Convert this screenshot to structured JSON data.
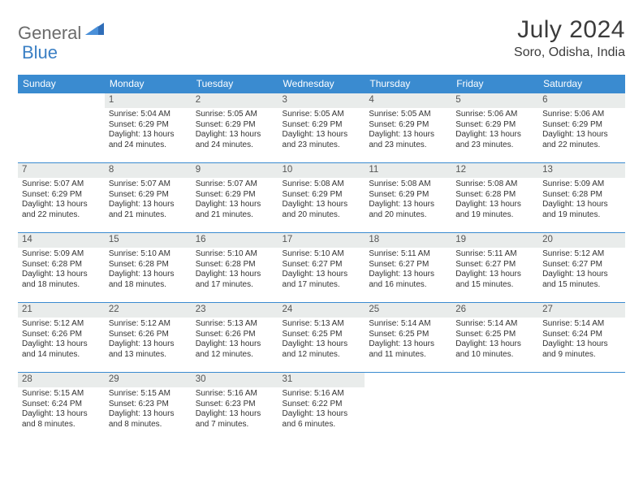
{
  "brand": {
    "part1": "General",
    "part2": "Blue"
  },
  "title": "July 2024",
  "location": "Soro, Odisha, India",
  "colors": {
    "header_bg": "#3a8bd0",
    "header_text": "#ffffff",
    "daynum_bg": "#e9eceb",
    "rule": "#3a8bd0",
    "brand_gray": "#6b6b6b",
    "brand_blue": "#3a7fc4"
  },
  "dow": [
    "Sunday",
    "Monday",
    "Tuesday",
    "Wednesday",
    "Thursday",
    "Friday",
    "Saturday"
  ],
  "weeks": [
    [
      {
        "n": "",
        "lines": []
      },
      {
        "n": "1",
        "lines": [
          "Sunrise: 5:04 AM",
          "Sunset: 6:29 PM",
          "Daylight: 13 hours",
          "and 24 minutes."
        ]
      },
      {
        "n": "2",
        "lines": [
          "Sunrise: 5:05 AM",
          "Sunset: 6:29 PM",
          "Daylight: 13 hours",
          "and 24 minutes."
        ]
      },
      {
        "n": "3",
        "lines": [
          "Sunrise: 5:05 AM",
          "Sunset: 6:29 PM",
          "Daylight: 13 hours",
          "and 23 minutes."
        ]
      },
      {
        "n": "4",
        "lines": [
          "Sunrise: 5:05 AM",
          "Sunset: 6:29 PM",
          "Daylight: 13 hours",
          "and 23 minutes."
        ]
      },
      {
        "n": "5",
        "lines": [
          "Sunrise: 5:06 AM",
          "Sunset: 6:29 PM",
          "Daylight: 13 hours",
          "and 23 minutes."
        ]
      },
      {
        "n": "6",
        "lines": [
          "Sunrise: 5:06 AM",
          "Sunset: 6:29 PM",
          "Daylight: 13 hours",
          "and 22 minutes."
        ]
      }
    ],
    [
      {
        "n": "7",
        "lines": [
          "Sunrise: 5:07 AM",
          "Sunset: 6:29 PM",
          "Daylight: 13 hours",
          "and 22 minutes."
        ]
      },
      {
        "n": "8",
        "lines": [
          "Sunrise: 5:07 AM",
          "Sunset: 6:29 PM",
          "Daylight: 13 hours",
          "and 21 minutes."
        ]
      },
      {
        "n": "9",
        "lines": [
          "Sunrise: 5:07 AM",
          "Sunset: 6:29 PM",
          "Daylight: 13 hours",
          "and 21 minutes."
        ]
      },
      {
        "n": "10",
        "lines": [
          "Sunrise: 5:08 AM",
          "Sunset: 6:29 PM",
          "Daylight: 13 hours",
          "and 20 minutes."
        ]
      },
      {
        "n": "11",
        "lines": [
          "Sunrise: 5:08 AM",
          "Sunset: 6:29 PM",
          "Daylight: 13 hours",
          "and 20 minutes."
        ]
      },
      {
        "n": "12",
        "lines": [
          "Sunrise: 5:08 AM",
          "Sunset: 6:28 PM",
          "Daylight: 13 hours",
          "and 19 minutes."
        ]
      },
      {
        "n": "13",
        "lines": [
          "Sunrise: 5:09 AM",
          "Sunset: 6:28 PM",
          "Daylight: 13 hours",
          "and 19 minutes."
        ]
      }
    ],
    [
      {
        "n": "14",
        "lines": [
          "Sunrise: 5:09 AM",
          "Sunset: 6:28 PM",
          "Daylight: 13 hours",
          "and 18 minutes."
        ]
      },
      {
        "n": "15",
        "lines": [
          "Sunrise: 5:10 AM",
          "Sunset: 6:28 PM",
          "Daylight: 13 hours",
          "and 18 minutes."
        ]
      },
      {
        "n": "16",
        "lines": [
          "Sunrise: 5:10 AM",
          "Sunset: 6:28 PM",
          "Daylight: 13 hours",
          "and 17 minutes."
        ]
      },
      {
        "n": "17",
        "lines": [
          "Sunrise: 5:10 AM",
          "Sunset: 6:27 PM",
          "Daylight: 13 hours",
          "and 17 minutes."
        ]
      },
      {
        "n": "18",
        "lines": [
          "Sunrise: 5:11 AM",
          "Sunset: 6:27 PM",
          "Daylight: 13 hours",
          "and 16 minutes."
        ]
      },
      {
        "n": "19",
        "lines": [
          "Sunrise: 5:11 AM",
          "Sunset: 6:27 PM",
          "Daylight: 13 hours",
          "and 15 minutes."
        ]
      },
      {
        "n": "20",
        "lines": [
          "Sunrise: 5:12 AM",
          "Sunset: 6:27 PM",
          "Daylight: 13 hours",
          "and 15 minutes."
        ]
      }
    ],
    [
      {
        "n": "21",
        "lines": [
          "Sunrise: 5:12 AM",
          "Sunset: 6:26 PM",
          "Daylight: 13 hours",
          "and 14 minutes."
        ]
      },
      {
        "n": "22",
        "lines": [
          "Sunrise: 5:12 AM",
          "Sunset: 6:26 PM",
          "Daylight: 13 hours",
          "and 13 minutes."
        ]
      },
      {
        "n": "23",
        "lines": [
          "Sunrise: 5:13 AM",
          "Sunset: 6:26 PM",
          "Daylight: 13 hours",
          "and 12 minutes."
        ]
      },
      {
        "n": "24",
        "lines": [
          "Sunrise: 5:13 AM",
          "Sunset: 6:25 PM",
          "Daylight: 13 hours",
          "and 12 minutes."
        ]
      },
      {
        "n": "25",
        "lines": [
          "Sunrise: 5:14 AM",
          "Sunset: 6:25 PM",
          "Daylight: 13 hours",
          "and 11 minutes."
        ]
      },
      {
        "n": "26",
        "lines": [
          "Sunrise: 5:14 AM",
          "Sunset: 6:25 PM",
          "Daylight: 13 hours",
          "and 10 minutes."
        ]
      },
      {
        "n": "27",
        "lines": [
          "Sunrise: 5:14 AM",
          "Sunset: 6:24 PM",
          "Daylight: 13 hours",
          "and 9 minutes."
        ]
      }
    ],
    [
      {
        "n": "28",
        "lines": [
          "Sunrise: 5:15 AM",
          "Sunset: 6:24 PM",
          "Daylight: 13 hours",
          "and 8 minutes."
        ]
      },
      {
        "n": "29",
        "lines": [
          "Sunrise: 5:15 AM",
          "Sunset: 6:23 PM",
          "Daylight: 13 hours",
          "and 8 minutes."
        ]
      },
      {
        "n": "30",
        "lines": [
          "Sunrise: 5:16 AM",
          "Sunset: 6:23 PM",
          "Daylight: 13 hours",
          "and 7 minutes."
        ]
      },
      {
        "n": "31",
        "lines": [
          "Sunrise: 5:16 AM",
          "Sunset: 6:22 PM",
          "Daylight: 13 hours",
          "and 6 minutes."
        ]
      },
      {
        "n": "",
        "lines": []
      },
      {
        "n": "",
        "lines": []
      },
      {
        "n": "",
        "lines": []
      }
    ]
  ]
}
